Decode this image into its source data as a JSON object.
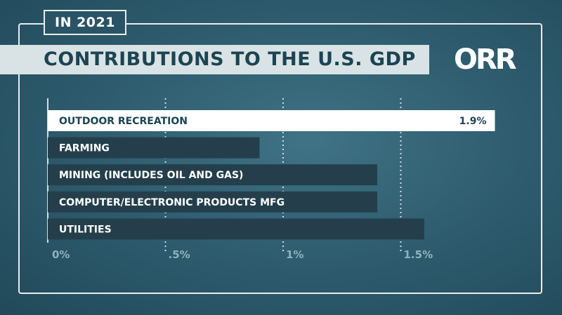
{
  "header": {
    "year": "IN 2021",
    "title": "CONTRIBUTIONS TO THE U.S. GDP",
    "logo": "ORR"
  },
  "chart_data": {
    "type": "bar",
    "orientation": "horizontal",
    "categories": [
      "OUTDOOR RECREATION",
      "FARMING",
      "MINING (INCLUDES OIL AND GAS)",
      "COMPUTER/ELECTRONIC PRODUCTS MFG",
      "UTILITIES"
    ],
    "values": [
      1.9,
      0.9,
      1.4,
      1.4,
      1.6
    ],
    "value_labels": [
      "1.9%",
      "",
      "",
      "",
      ""
    ],
    "xlim": [
      0,
      1.9
    ],
    "ticks": [
      0,
      0.5,
      1,
      1.5
    ],
    "tick_labels": [
      "0%",
      ".5%",
      "1%",
      "1.5%"
    ],
    "grid": "dotted vertical",
    "highlight_color": "#ffffff",
    "bar_color": "#243f4b"
  }
}
